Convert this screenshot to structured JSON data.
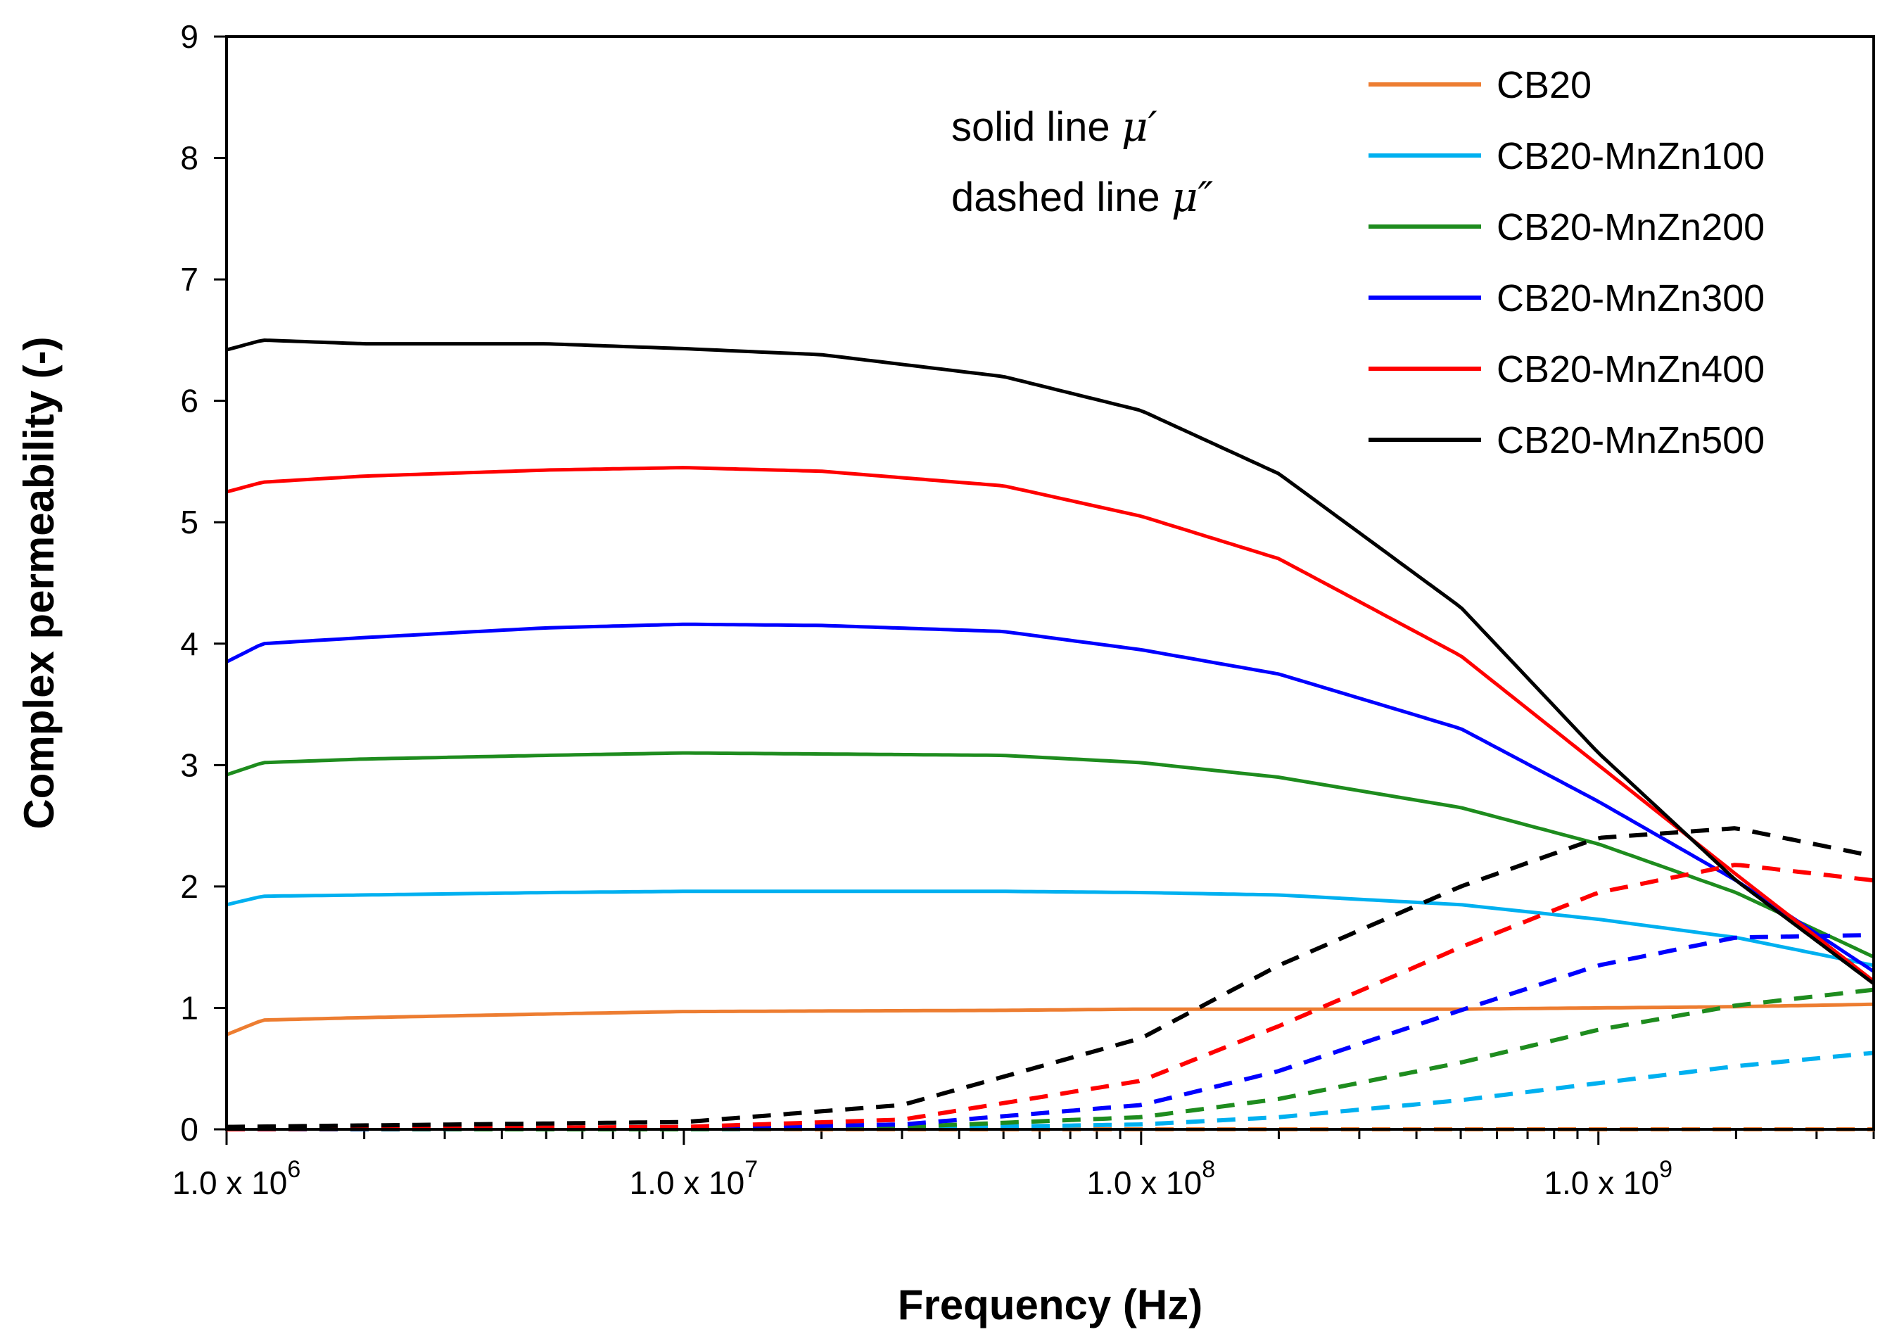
{
  "chart_data": {
    "type": "line",
    "xscale": "log",
    "xlim": [
      1000000,
      4000000000
    ],
    "ylim": [
      0,
      9
    ],
    "xlabel": "Frequency (Hz)",
    "ylabel": "Complex permeability (-)",
    "yticks": [
      0,
      1,
      2,
      3,
      4,
      5,
      6,
      7,
      8,
      9
    ],
    "xticks": [
      {
        "value": 1000000,
        "mantissa": "1.0 x 10",
        "exponent": "6"
      },
      {
        "value": 10000000,
        "mantissa": "1.0 x 10",
        "exponent": "7"
      },
      {
        "value": 100000000,
        "mantissa": "1.0 x 10",
        "exponent": "8"
      },
      {
        "value": 1000000000,
        "mantissa": "1.0 x 10",
        "exponent": "9"
      }
    ],
    "annotation": {
      "line1": "solid line ",
      "line1_symbol": "μ′",
      "line2": "dashed line ",
      "line2_symbol": "μ″"
    },
    "legend_position": "top-right",
    "series": [
      {
        "name": "CB20",
        "color": "#ED7D31",
        "real": {
          "x": [
            1000000,
            1200000,
            2000000,
            5000000,
            10000000,
            50000000,
            100000000,
            500000000,
            1000000000,
            2000000000,
            4000000000
          ],
          "y": [
            0.78,
            0.9,
            0.92,
            0.95,
            0.97,
            0.98,
            0.99,
            0.99,
            1.0,
            1.01,
            1.03
          ]
        },
        "imag": {
          "x": [
            1000000,
            10000000,
            100000000,
            1000000000,
            4000000000
          ],
          "y": [
            0.02,
            0.0,
            0.0,
            0.0,
            0.0
          ]
        }
      },
      {
        "name": "CB20-MnZn100",
        "color": "#00B0F0",
        "real": {
          "x": [
            1000000,
            1200000,
            2000000,
            5000000,
            10000000,
            50000000,
            100000000,
            200000000,
            500000000,
            1000000000,
            2000000000,
            4000000000
          ],
          "y": [
            1.85,
            1.92,
            1.93,
            1.95,
            1.96,
            1.96,
            1.95,
            1.93,
            1.85,
            1.73,
            1.58,
            1.35
          ]
        },
        "imag": {
          "x": [
            1000000,
            10000000,
            30000000,
            100000000,
            200000000,
            500000000,
            1000000000,
            2000000000,
            4000000000
          ],
          "y": [
            0.0,
            0.0,
            0.01,
            0.04,
            0.1,
            0.24,
            0.38,
            0.52,
            0.63
          ]
        }
      },
      {
        "name": "CB20-MnZn200",
        "color": "#1E8C1E",
        "real": {
          "x": [
            1000000,
            1200000,
            2000000,
            5000000,
            10000000,
            50000000,
            100000000,
            200000000,
            500000000,
            1000000000,
            2000000000,
            4000000000
          ],
          "y": [
            2.92,
            3.02,
            3.05,
            3.08,
            3.1,
            3.08,
            3.02,
            2.9,
            2.65,
            2.35,
            1.95,
            1.42
          ]
        },
        "imag": {
          "x": [
            1000000,
            10000000,
            30000000,
            100000000,
            200000000,
            500000000,
            1000000000,
            2000000000,
            4000000000
          ],
          "y": [
            0.0,
            0.0,
            0.02,
            0.1,
            0.25,
            0.55,
            0.82,
            1.02,
            1.15
          ]
        }
      },
      {
        "name": "CB20-MnZn300",
        "color": "#0000FF",
        "real": {
          "x": [
            1000000,
            1200000,
            2000000,
            5000000,
            10000000,
            20000000,
            50000000,
            100000000,
            200000000,
            500000000,
            1000000000,
            2000000000,
            4000000000
          ],
          "y": [
            3.85,
            4.0,
            4.05,
            4.13,
            4.16,
            4.15,
            4.1,
            3.95,
            3.75,
            3.3,
            2.7,
            2.05,
            1.3
          ]
        },
        "imag": {
          "x": [
            1000000,
            10000000,
            30000000,
            100000000,
            200000000,
            500000000,
            1000000000,
            2000000000,
            4000000000
          ],
          "y": [
            0.0,
            0.01,
            0.04,
            0.2,
            0.48,
            0.98,
            1.35,
            1.58,
            1.6
          ]
        }
      },
      {
        "name": "CB20-MnZn400",
        "color": "#FF0000",
        "real": {
          "x": [
            1000000,
            1200000,
            2000000,
            5000000,
            10000000,
            20000000,
            50000000,
            100000000,
            200000000,
            500000000,
            1000000000,
            2000000000,
            4000000000
          ],
          "y": [
            5.25,
            5.33,
            5.38,
            5.43,
            5.45,
            5.42,
            5.3,
            5.05,
            4.7,
            3.9,
            3.0,
            2.1,
            1.22
          ]
        },
        "imag": {
          "x": [
            1000000,
            10000000,
            30000000,
            100000000,
            200000000,
            500000000,
            1000000000,
            2000000000,
            4000000000
          ],
          "y": [
            0.0,
            0.02,
            0.08,
            0.4,
            0.85,
            1.5,
            1.95,
            2.18,
            2.05
          ]
        }
      },
      {
        "name": "CB20-MnZn500",
        "color": "#000000",
        "real": {
          "x": [
            1000000,
            1200000,
            2000000,
            5000000,
            10000000,
            20000000,
            50000000,
            100000000,
            200000000,
            500000000,
            1000000000,
            2000000000,
            4000000000
          ],
          "y": [
            6.42,
            6.5,
            6.47,
            6.47,
            6.43,
            6.38,
            6.2,
            5.92,
            5.4,
            4.3,
            3.1,
            2.05,
            1.2
          ]
        },
        "imag": {
          "x": [
            1000000,
            10000000,
            30000000,
            100000000,
            200000000,
            500000000,
            1000000000,
            2000000000,
            4000000000
          ],
          "y": [
            0.02,
            0.06,
            0.2,
            0.75,
            1.35,
            2.0,
            2.4,
            2.48,
            2.25
          ]
        }
      }
    ]
  }
}
